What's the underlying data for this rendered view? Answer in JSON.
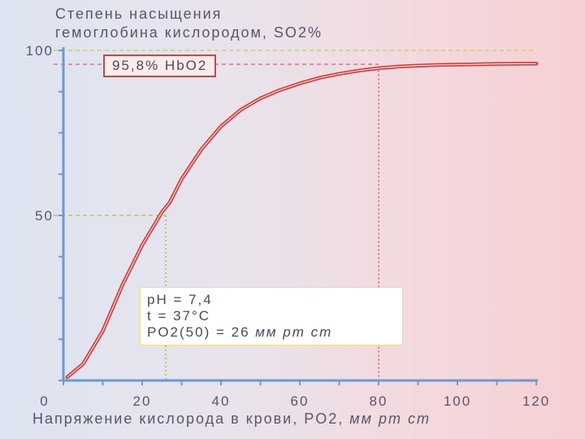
{
  "chart_data": {
    "type": "line",
    "title_line1": "Степень насыщения",
    "title_line2": "гемоглобина кислородом, SO2%",
    "xlabel_main": "Напряжение кислорода в крови, PO2,",
    "xlabel_unit": "мм рт ст",
    "xlim": [
      0,
      120
    ],
    "ylim": [
      0,
      100
    ],
    "x_ticks": [
      "0",
      "20",
      "40",
      "60",
      "80",
      "100",
      "120"
    ],
    "y_ticks": [
      "50",
      "100"
    ],
    "series": [
      {
        "color": "#d23c3c",
        "x": [
          1,
          5,
          10,
          15,
          20,
          25,
          27,
          30,
          35,
          40,
          45,
          50,
          55,
          60,
          65,
          70,
          75,
          80,
          85,
          90,
          95,
          100,
          110,
          120
        ],
        "y": [
          1,
          5,
          15,
          29,
          41,
          51,
          54,
          61,
          70,
          77,
          82,
          85.5,
          88,
          90,
          91.7,
          92.9,
          93.9,
          94.6,
          95.1,
          95.4,
          95.6,
          95.7,
          95.9,
          96
        ]
      }
    ],
    "reference_lines": [
      {
        "axis": "y",
        "value": 100,
        "color": "#c9d26a"
      },
      {
        "axis": "y",
        "value": 95.8,
        "color": "#e07a7a"
      },
      {
        "axis": "y",
        "value": 50,
        "color": "#b8c84a"
      },
      {
        "axis": "x",
        "value": 26,
        "color": "#b8c84a"
      },
      {
        "axis": "x",
        "value": 80,
        "color": "#e07a7a"
      }
    ],
    "callout": "95,8% HbO2",
    "info": {
      "ph": "pH = 7,4",
      "temp": "t = 37°C",
      "p50_main": "PO2(50) = 26",
      "p50_unit": "мм рт ст"
    },
    "axis_color": "#6a9ad6"
  }
}
